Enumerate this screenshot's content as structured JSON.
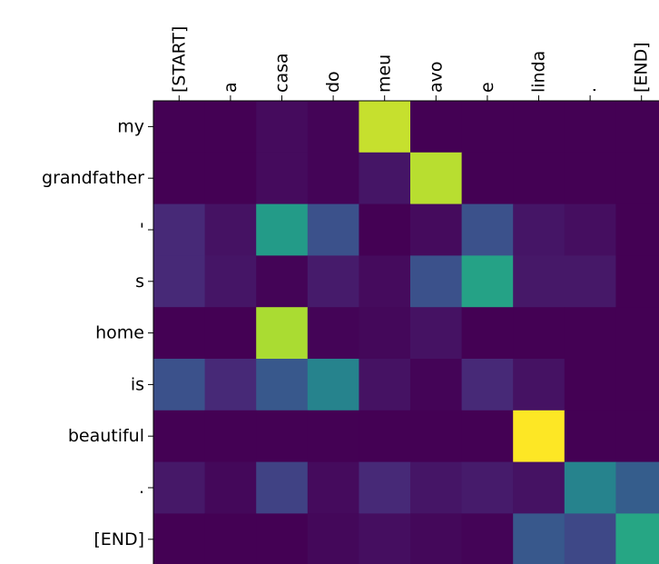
{
  "chart_data": {
    "type": "heatmap",
    "title": "",
    "xlabel": "",
    "ylabel": "",
    "x_labels": [
      "[START]",
      "a",
      "casa",
      "do",
      "meu",
      "avo",
      "e",
      "linda",
      ".",
      "[END]"
    ],
    "y_labels": [
      "my",
      "grandfather",
      "'",
      "s",
      "home",
      "is",
      "beautiful",
      ".",
      "[END]"
    ],
    "x_tick_position": "top",
    "x_tick_rotation": 90,
    "colormap": "viridis",
    "value_range": [
      0,
      1
    ],
    "grid": false,
    "legend": "none",
    "values": [
      [
        0.0,
        0.0,
        0.03,
        0.01,
        0.92,
        0.0,
        0.0,
        0.0,
        0.0,
        0.0
      ],
      [
        0.0,
        0.0,
        0.03,
        0.01,
        0.06,
        0.9,
        0.0,
        0.0,
        0.0,
        0.0
      ],
      [
        0.12,
        0.05,
        0.55,
        0.25,
        0.0,
        0.03,
        0.25,
        0.06,
        0.04,
        0.0
      ],
      [
        0.12,
        0.06,
        0.01,
        0.08,
        0.03,
        0.25,
        0.58,
        0.07,
        0.07,
        0.0
      ],
      [
        0.0,
        0.0,
        0.88,
        0.01,
        0.02,
        0.05,
        0.0,
        0.0,
        0.0,
        0.0
      ],
      [
        0.25,
        0.12,
        0.28,
        0.45,
        0.05,
        0.01,
        0.12,
        0.05,
        0.0,
        0.0
      ],
      [
        0.0,
        0.0,
        0.0,
        0.0,
        0.0,
        0.0,
        0.0,
        1.0,
        0.0,
        0.0
      ],
      [
        0.07,
        0.02,
        0.2,
        0.03,
        0.12,
        0.06,
        0.08,
        0.05,
        0.45,
        0.3
      ],
      [
        0.0,
        0.0,
        0.0,
        0.02,
        0.04,
        0.02,
        0.01,
        0.28,
        0.22,
        0.6
      ]
    ]
  }
}
